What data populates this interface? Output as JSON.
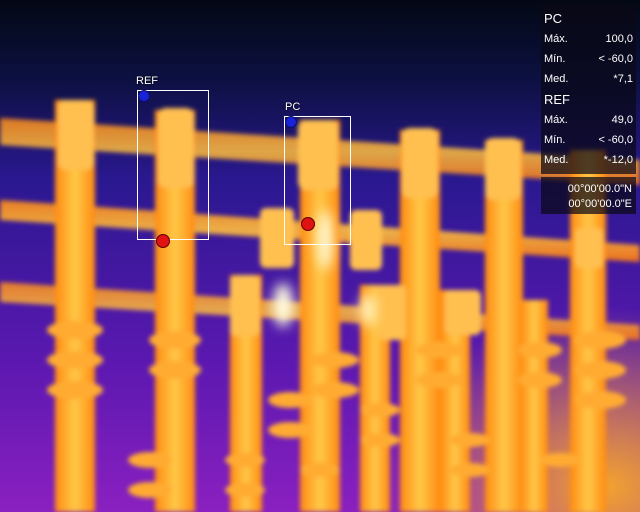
{
  "roi": {
    "ref_label": "REF",
    "pc_label": "PC"
  },
  "stats": {
    "pc": {
      "title": "PC",
      "max_label": "Máx.",
      "max_value": "100,0",
      "min_label": "Mín.",
      "min_value": "< -60,0",
      "med_label": "Med.",
      "med_value": "*7,1"
    },
    "ref": {
      "title": "REF",
      "max_label": "Máx.",
      "max_value": "49,0",
      "min_label": "Mín.",
      "min_value": "< -60,0",
      "med_label": "Med.",
      "med_value": "*-12,0"
    }
  },
  "gps": {
    "lat": "00°00'00.0\"N",
    "lon": "00°00'00.0\"E"
  },
  "colors": {
    "sky_top": "#050a18",
    "sky_mid": "#1a1a70",
    "sky_low": "#6a1ab0",
    "hot": "#ffb000",
    "warm": "#ff7a10",
    "white_hot": "#fff6c8",
    "cold_marker": "#1a22d8",
    "hot_marker": "#e01212"
  }
}
